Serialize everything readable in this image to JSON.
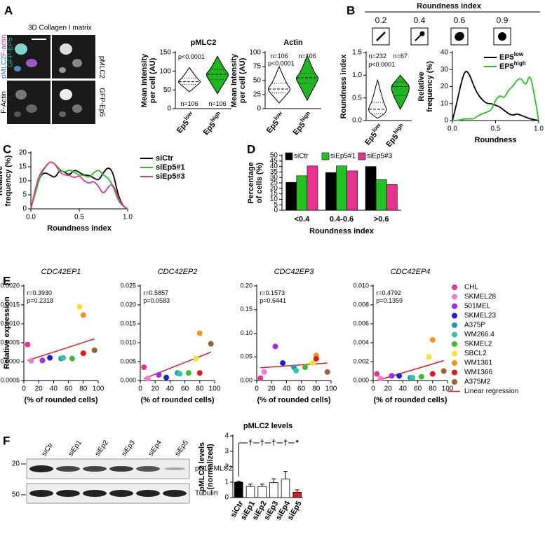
{
  "figure": {
    "panel_labels": [
      "A",
      "B",
      "C",
      "D",
      "E",
      "F"
    ],
    "microscopy": {
      "title": "3D Collagen I matrix",
      "merge_labels": [
        "pMLC2",
        "F-actin",
        "GFP-EP5"
      ],
      "right_labels": [
        "pMLC2",
        "GFP-Ep5"
      ],
      "left_label": "F-Actin"
    },
    "roundness_key": {
      "title": "Roundness index",
      "values": [
        0.2,
        0.4,
        0.6,
        0.9
      ]
    },
    "blot": {
      "lanes": [
        "siCtr",
        "siEp1",
        "siEp2",
        "siEp3",
        "siEp4",
        "siEp5"
      ],
      "markers": [
        20,
        50
      ],
      "bands": [
        "pS19-MLC2",
        "Tubulin"
      ]
    },
    "cell_line_legend": {
      "entries": [
        {
          "name": "CHL",
          "color": "#e8338e"
        },
        {
          "name": "SKMEL28",
          "color": "#f07cd6"
        },
        {
          "name": "501MEL",
          "color": "#a12ee0"
        },
        {
          "name": "SKMEL23",
          "color": "#1a20d6"
        },
        {
          "name": "A375P",
          "color": "#2a97c5"
        },
        {
          "name": "WM266.4",
          "color": "#2fc7a0"
        },
        {
          "name": "SKMEL2",
          "color": "#35c02e"
        },
        {
          "name": "SBCL2",
          "color": "#f2e52b"
        },
        {
          "name": "WM1361",
          "color": "#f7931e"
        },
        {
          "name": "WM1366",
          "color": "#e31a1c"
        },
        {
          "name": "A375M2",
          "color": "#a0622d"
        }
      ],
      "regression": {
        "name": "Linear regression",
        "color": "#e31a1c"
      }
    }
  },
  "chart_data": [
    {
      "type": "violin",
      "title": "pMLC2",
      "ylabel": [
        "Mean Intensity",
        "per cell (AU)"
      ],
      "categories": [
        "Ep5",
        "Ep5"
      ],
      "category_superscripts": [
        "low",
        "high"
      ],
      "colors": [
        "#ffffff",
        "#22b522"
      ],
      "min": [
        45,
        40
      ],
      "q1": [
        65,
        78
      ],
      "median": [
        72,
        92
      ],
      "q3": [
        82,
        105
      ],
      "max": [
        110,
        140
      ],
      "ylim": [
        0,
        150
      ],
      "yticks": [
        0,
        50,
        100,
        150
      ],
      "annotations": [
        "p<0.0001",
        "n=106",
        "n=106"
      ]
    },
    {
      "type": "violin",
      "title": "Actin",
      "ylabel": [
        "Mean Intensity",
        "per cell (AU)"
      ],
      "categories": [
        "Ep5",
        "Ep5"
      ],
      "category_superscripts": [
        "low",
        "high"
      ],
      "colors": [
        "#ffffff",
        "#22b522"
      ],
      "min": [
        10,
        15
      ],
      "q1": [
        28,
        45
      ],
      "median": [
        35,
        55
      ],
      "q3": [
        45,
        63
      ],
      "max": [
        75,
        95
      ],
      "ylim": [
        0,
        100
      ],
      "yticks": [
        0,
        25,
        50,
        75,
        100
      ],
      "annotations": [
        "n=106",
        "n=106",
        "p<0.0001"
      ]
    },
    {
      "type": "violin",
      "ylabel": [
        "Roundness index"
      ],
      "categories": [
        "Ep5",
        "Ep5"
      ],
      "category_superscripts": [
        "low",
        "high"
      ],
      "colors": [
        "#ffffff",
        "#22b522"
      ],
      "min": [
        0.05,
        0.25
      ],
      "q1": [
        0.15,
        0.55
      ],
      "median": [
        0.25,
        0.75
      ],
      "q3": [
        0.4,
        0.85
      ],
      "max": [
        0.9,
        1.0
      ],
      "ylim": [
        0,
        1.5
      ],
      "yticks": [
        {
          "value": 0,
          "label": "0.0"
        },
        0.5,
        {
          "value": 1,
          "label": "1.0"
        },
        1.5
      ],
      "annotations": [
        "n=232",
        "n=67",
        "p<0.0001"
      ]
    },
    {
      "type": "line",
      "ylabel": [
        "Relative",
        "frequency (%)"
      ],
      "xlabel": "Roundness",
      "x": [
        0,
        0.05,
        0.1,
        0.15,
        0.2,
        0.25,
        0.3,
        0.35,
        0.4,
        0.45,
        0.5,
        0.55,
        0.6,
        0.65,
        0.7,
        0.75,
        0.8,
        0.85,
        0.9,
        0.95,
        1
      ],
      "series": [
        {
          "name": "EP5",
          "superscript": "low",
          "color": "#000000",
          "values": [
            0,
            10,
            22,
            30,
            27,
            20,
            15,
            12,
            10,
            10,
            9,
            8,
            6,
            4,
            3,
            4,
            3,
            2,
            1,
            0.5,
            0
          ]
        },
        {
          "name": "EP5",
          "superscript": "high",
          "color": "#22c322",
          "values": [
            0,
            0,
            0.5,
            1,
            1,
            1,
            3,
            4,
            5,
            6,
            12,
            15,
            13,
            18,
            20,
            24,
            25,
            20,
            28,
            15,
            0
          ]
        }
      ],
      "xlim": [
        0,
        1
      ],
      "xticks": [
        {
          "value": 0,
          "label": "0.0"
        },
        0.5,
        {
          "value": 1,
          "label": "1.0"
        }
      ],
      "ylim": [
        0,
        40
      ],
      "yticks": [
        0,
        10,
        20,
        30,
        40
      ]
    },
    {
      "type": "line",
      "ylabel": [
        "Relative",
        "frequency (%)"
      ],
      "xlabel": "Roundness index",
      "x": [
        0,
        0.05,
        0.1,
        0.15,
        0.2,
        0.25,
        0.3,
        0.35,
        0.4,
        0.45,
        0.5,
        0.55,
        0.6,
        0.65,
        0.7,
        0.75,
        0.8,
        0.85,
        0.9,
        0.95,
        1
      ],
      "series": [
        {
          "name": "siCtr",
          "color": "#000000",
          "values": [
            0,
            7,
            12,
            13,
            12,
            11,
            14,
            13,
            12,
            14,
            13,
            12,
            12,
            11,
            10,
            13,
            15,
            13,
            5,
            1,
            0
          ]
        },
        {
          "name": "siEp5#1",
          "color": "#22c322",
          "values": [
            0,
            6,
            12,
            15,
            17,
            16,
            14,
            13,
            14,
            13,
            12,
            12,
            11,
            13,
            14,
            12,
            11,
            8,
            3,
            1,
            0
          ]
        },
        {
          "name": "siEp5#3",
          "color": "#e8338e",
          "values": [
            0,
            8,
            13,
            15,
            17,
            16,
            13,
            12,
            12,
            11,
            12,
            10,
            9,
            10,
            8,
            5,
            8,
            9,
            4,
            1,
            0
          ]
        }
      ],
      "xlim": [
        0,
        1
      ],
      "xticks": [
        {
          "value": 0,
          "label": "0.0"
        },
        0.5,
        {
          "value": 1,
          "label": "1.0"
        }
      ],
      "ylim": [
        0,
        20
      ],
      "yticks": [
        0,
        5,
        10,
        15,
        20
      ]
    },
    {
      "type": "bar",
      "ylabel": [
        "Percentage",
        "of cells (%)"
      ],
      "xlabel": "Roundness index",
      "categories": [
        "<0.4",
        "0.4-0.6",
        ">0.6"
      ],
      "series": [
        {
          "name": "siCtr",
          "color": "#000000",
          "values": [
            25.5,
            34.5,
            40
          ]
        },
        {
          "name": "siEp5#1",
          "color": "#22c322",
          "values": [
            31.5,
            40.5,
            28
          ]
        },
        {
          "name": "siEp5#3",
          "color": "#e8338e",
          "values": [
            40.5,
            36,
            23.5
          ]
        }
      ],
      "ylim": [
        0,
        50
      ],
      "yticks": [
        0,
        5,
        10,
        15,
        20,
        25,
        30,
        35,
        40,
        45,
        50
      ]
    },
    {
      "type": "scatter",
      "title": "CDC42EP1",
      "ylabel": [
        "Relative expression"
      ],
      "xlabel": "(% of rounded cells)",
      "x": [
        5,
        10,
        25,
        35,
        50,
        53,
        65,
        75,
        80,
        80,
        95
      ],
      "values": [
        0.00045,
        2e-05,
        3e-05,
        0.0001,
        8e-05,
        0.0001,
        8e-05,
        0.00145,
        0.00123,
        0.00022,
        0.0003
      ],
      "fit": {
        "x": [
          5,
          95
        ],
        "y": [
          3e-05,
          0.0006
        ]
      },
      "annotations": [
        "r=0.3930",
        "p=0.2318"
      ],
      "xlim": [
        0,
        100
      ],
      "xticks": [
        0,
        20,
        40,
        60,
        80,
        100
      ],
      "ylim": [
        -0.0005,
        0.002
      ],
      "yticks": [
        -0.0005,
        {
          "value": 0,
          "label": "0.0000"
        },
        0.0005,
        {
          "value": 0.001,
          "label": "0.0010"
        },
        0.0015,
        {
          "value": 0.002,
          "label": "0.0020"
        }
      ]
    },
    {
      "type": "scatter",
      "title": "CDC42EP2",
      "xlabel": "(% of rounded cells)",
      "x": [
        5,
        10,
        25,
        35,
        50,
        53,
        65,
        75,
        80,
        80,
        95
      ],
      "values": [
        0.0035,
        0.0005,
        0.0015,
        0.0008,
        0.002,
        0.0018,
        0.002,
        0.0058,
        0.0125,
        0.002,
        0.0097
      ],
      "fit": {
        "x": [
          5,
          95
        ],
        "y": [
          0.0005,
          0.0075
        ]
      },
      "annotations": [
        "r=0.5857",
        "p=0.0583"
      ],
      "xlim": [
        0,
        100
      ],
      "xticks": [
        0,
        20,
        40,
        60,
        80,
        100
      ],
      "ylim": [
        0,
        0.025
      ],
      "yticks": [
        {
          "value": 0,
          "label": "0.000"
        },
        0.005,
        {
          "value": 0.01,
          "label": "0.010"
        },
        0.015,
        {
          "value": 0.02,
          "label": "0.020"
        },
        0.025
      ]
    },
    {
      "type": "scatter",
      "title": "CDC42EP3",
      "xlabel": "(% of rounded cells)",
      "x": [
        5,
        10,
        25,
        35,
        50,
        53,
        65,
        75,
        80,
        80,
        95
      ],
      "values": [
        0.005,
        0.018,
        0.072,
        0.037,
        0.028,
        0.021,
        0.028,
        0.037,
        0.053,
        0.046,
        0.018
      ],
      "fit": {
        "x": [
          5,
          95
        ],
        "y": [
          0.027,
          0.037
        ]
      },
      "annotations": [
        "r=0.1573",
        "p=0.6441"
      ],
      "xlim": [
        0,
        100
      ],
      "xticks": [
        0,
        20,
        40,
        60,
        80,
        100
      ],
      "ylim": [
        0,
        0.2
      ],
      "yticks": [
        {
          "value": 0,
          "label": "0.00"
        },
        0.05,
        {
          "value": 0.1,
          "label": "0.10"
        },
        0.15,
        {
          "value": 0.2,
          "label": "0.20"
        }
      ]
    },
    {
      "type": "scatter",
      "title": "CDC42EP4",
      "xlabel": "(% of rounded cells)",
      "x": [
        5,
        10,
        25,
        35,
        50,
        53,
        65,
        75,
        80,
        80,
        95
      ],
      "values": [
        0.0007,
        0.0002,
        0.0005,
        0.0005,
        0.0003,
        0.0003,
        0.0004,
        0.0025,
        0.0043,
        0.0007,
        0.001
      ],
      "fit": {
        "x": [
          5,
          95
        ],
        "y": [
          0,
          0.0021
        ]
      },
      "annotations": [
        "r=0.4792",
        "p=0.1359"
      ],
      "xlim": [
        0,
        100
      ],
      "xticks": [
        0,
        20,
        40,
        60,
        80,
        100
      ],
      "ylim": [
        0,
        0.01
      ],
      "yticks": [
        {
          "value": 0,
          "label": "0.000"
        },
        {
          "value": 0.002,
          "label": "0.002"
        },
        {
          "value": 0.004,
          "label": "0.004"
        },
        {
          "value": 0.006,
          "label": "0.006"
        },
        {
          "value": 0.008,
          "label": "0.008"
        },
        {
          "value": 0.01,
          "label": "0.010"
        }
      ]
    },
    {
      "type": "errbar",
      "title": "pMLC2 levels",
      "ylabel": [
        "pMLC2 levels",
        "(normalized)"
      ],
      "categories": [
        "siCtr",
        "siEp1",
        "siEp2",
        "siEp3",
        "siEp4",
        "siEp5"
      ],
      "values": [
        1.0,
        0.72,
        0.72,
        0.97,
        1.2,
        0.35
      ],
      "errors": [
        0.05,
        0.15,
        0.15,
        0.25,
        0.5,
        0.15
      ],
      "colors": [
        "#000000",
        "#ffffff",
        "#ffffff",
        "#ffffff",
        "#ffffff",
        "#e31a1c"
      ],
      "significance": [
        "†",
        "†",
        "†",
        "†",
        "*"
      ],
      "ylim": [
        0,
        4
      ],
      "yticks": [
        0,
        1,
        2,
        3,
        4
      ]
    }
  ]
}
